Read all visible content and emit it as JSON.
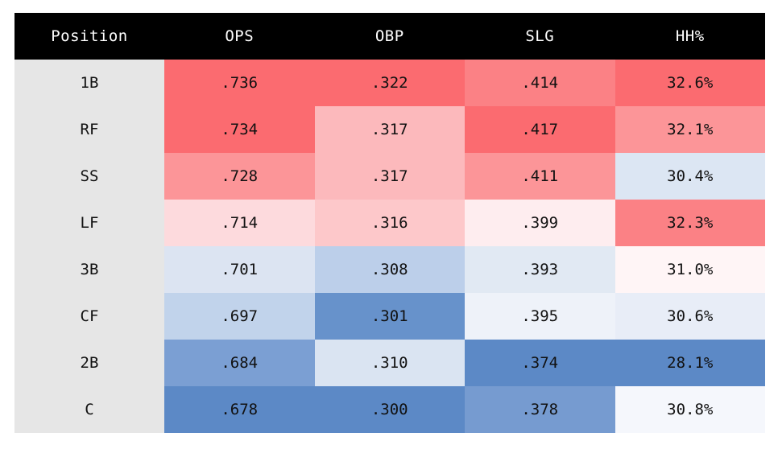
{
  "chart_data": {
    "type": "table",
    "columns": [
      "Position",
      "OPS",
      "OBP",
      "SLG",
      "HH%"
    ],
    "rows": [
      {
        "position": "1B",
        "values": [
          ".736",
          ".322",
          ".414",
          "32.6%"
        ]
      },
      {
        "position": "RF",
        "values": [
          ".734",
          ".317",
          ".417",
          "32.1%"
        ]
      },
      {
        "position": "SS",
        "values": [
          ".728",
          ".317",
          ".411",
          "30.4%"
        ]
      },
      {
        "position": "LF",
        "values": [
          ".714",
          ".316",
          ".399",
          "32.3%"
        ]
      },
      {
        "position": "3B",
        "values": [
          ".701",
          ".308",
          ".393",
          "31.0%"
        ]
      },
      {
        "position": "CF",
        "values": [
          ".697",
          ".301",
          ".395",
          "30.6%"
        ]
      },
      {
        "position": "2B",
        "values": [
          ".684",
          ".310",
          ".374",
          "28.1%"
        ]
      },
      {
        "position": "C",
        "values": [
          ".678",
          ".300",
          ".378",
          "30.8%"
        ]
      }
    ],
    "cell_colors": [
      [
        "#fb6b70",
        "#fb6b70",
        "#fb8185",
        "#fb6b70"
      ],
      [
        "#fb6b70",
        "#fcb9bc",
        "#fb6b70",
        "#fc9598"
      ],
      [
        "#fc9598",
        "#fcb9bc",
        "#fc9598",
        "#dce6f3"
      ],
      [
        "#fddadd",
        "#fdc8ca",
        "#feedef",
        "#fb8185"
      ],
      [
        "#dce4f2",
        "#bccfea",
        "#e1e9f3",
        "#fff5f6"
      ],
      [
        "#c1d3eb",
        "#6792cb",
        "#eef2f9",
        "#e8edf7"
      ],
      [
        "#7b9fd3",
        "#dae4f2",
        "#5c89c6",
        "#5c89c6"
      ],
      [
        "#5c89c6",
        "#5c89c6",
        "#769bd0",
        "#f5f7fc"
      ]
    ],
    "header_background": "#000000",
    "header_text_color": "#ffffff",
    "position_cell_background": "#e6e6e6"
  }
}
